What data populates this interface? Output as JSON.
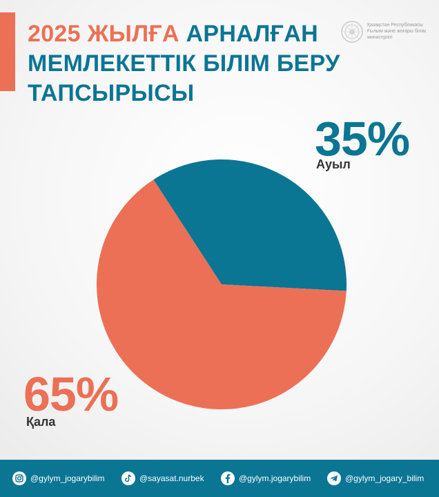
{
  "header": {
    "title_highlight": "2025 ЖЫЛҒА",
    "title_rest_line1": "АРНАЛҒАН",
    "title_line2": "МЕМЛЕКЕТТІК БІЛІМ БЕРУ",
    "title_line3": "ТАПСЫРЫСЫ",
    "ministry": "Қазақстан Республикасы\nҒылым және жоғары білім\nминистрлігі"
  },
  "chart_data": {
    "type": "pie",
    "slices": [
      {
        "label": "Ауыл",
        "value": 35,
        "display": "35%",
        "color": "#0b7594"
      },
      {
        "label": "Қала",
        "value": 65,
        "display": "65%",
        "color": "#ec7055"
      }
    ]
  },
  "footer": {
    "instagram": "@gylym_jogarybilim",
    "tiktok": "@sayasat.nurbek",
    "facebook": "@gylym.jogarybilim",
    "telegram": "@gylym_jogary_bilim"
  },
  "colors": {
    "primary": "#0b7594",
    "accent": "#ec7055"
  },
  "icons": [
    "instagram-icon",
    "tiktok-icon",
    "facebook-icon",
    "telegram-icon",
    "state-emblem-icon"
  ]
}
